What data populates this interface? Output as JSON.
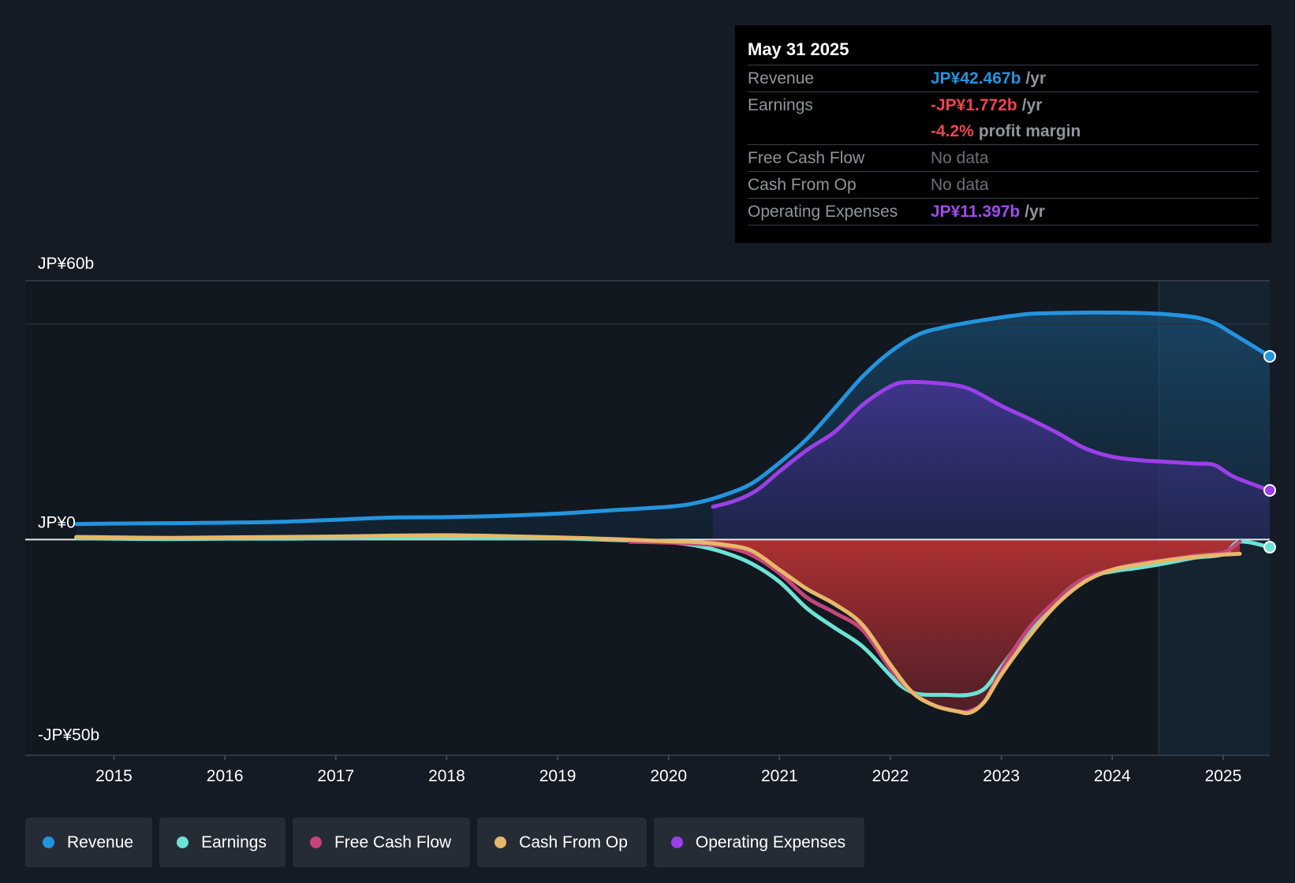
{
  "colors": {
    "background": "#151b24",
    "revenue": "#2394df",
    "earnings": "#6ce3d4",
    "free_cash_flow": "#c4457a",
    "cash_from_op": "#e6b86a",
    "operating_expenses": "#9b3fe8"
  },
  "tooltip": {
    "date": "May 31 2025",
    "rows": [
      {
        "label": "Revenue",
        "value": "JP¥42.467b",
        "unit": "/yr"
      },
      {
        "label": "Earnings",
        "value": "-JP¥1.772b",
        "unit": "/yr"
      },
      {
        "label": "",
        "value": "-4.2%",
        "unit": "profit margin"
      },
      {
        "label": "Free Cash Flow",
        "value": "No data",
        "unit": ""
      },
      {
        "label": "Cash From Op",
        "value": "No data",
        "unit": ""
      },
      {
        "label": "Operating Expenses",
        "value": "JP¥11.397b",
        "unit": "/yr"
      }
    ]
  },
  "legend": [
    {
      "label": "Revenue",
      "icon": "dot-icon"
    },
    {
      "label": "Earnings",
      "icon": "dot-icon"
    },
    {
      "label": "Free Cash Flow",
      "icon": "dot-icon"
    },
    {
      "label": "Cash From Op",
      "icon": "dot-icon"
    },
    {
      "label": "Operating Expenses",
      "icon": "dot-icon"
    }
  ],
  "chart_data": {
    "type": "area",
    "title": "",
    "xlabel": "",
    "ylabel": "",
    "ylim": [
      -50,
      60
    ],
    "xlim": [
      2014.2,
      2025.42
    ],
    "grid": true,
    "legend_position": "bottom",
    "y_ticks": [
      {
        "value": 60,
        "label": "JP¥60b"
      },
      {
        "value": 0,
        "label": "JP¥0"
      },
      {
        "value": -50,
        "label": "-JP¥50b"
      }
    ],
    "x_ticks": [
      "2015",
      "2016",
      "2017",
      "2018",
      "2019",
      "2020",
      "2021",
      "2022",
      "2023",
      "2024",
      "2025"
    ],
    "series": [
      {
        "name": "Revenue",
        "unit": "JP¥b",
        "x": [
          2014.66,
          2015.0,
          2015.5,
          2016.0,
          2016.5,
          2017.0,
          2017.5,
          2018.0,
          2018.5,
          2019.0,
          2019.5,
          2020.0,
          2020.25,
          2020.5,
          2020.75,
          2021.0,
          2021.25,
          2021.5,
          2021.75,
          2022.0,
          2022.25,
          2022.5,
          2022.75,
          2023.0,
          2023.25,
          2023.5,
          2023.75,
          2024.0,
          2024.25,
          2024.5,
          2024.75,
          2024.92,
          2025.1,
          2025.42
        ],
        "values": [
          3.6,
          3.7,
          3.8,
          3.9,
          4.1,
          4.6,
          5.1,
          5.2,
          5.5,
          6.0,
          6.8,
          7.6,
          8.5,
          10.3,
          13.0,
          17.8,
          23.4,
          30.5,
          37.8,
          43.5,
          47.5,
          49.3,
          50.5,
          51.5,
          52.3,
          52.5,
          52.6,
          52.6,
          52.5,
          52.2,
          51.5,
          50.2,
          47.5,
          42.467
        ]
      },
      {
        "name": "Earnings",
        "unit": "JP¥b",
        "x": [
          2014.66,
          2015.0,
          2015.5,
          2016.0,
          2016.5,
          2017.0,
          2017.5,
          2018.0,
          2018.5,
          2019.0,
          2019.5,
          2019.75,
          2020.0,
          2020.25,
          2020.5,
          2020.75,
          2021.0,
          2021.25,
          2021.5,
          2021.75,
          2022.0,
          2022.1,
          2022.25,
          2022.5,
          2022.7,
          2022.85,
          2023.0,
          2023.25,
          2023.5,
          2023.75,
          2024.0,
          2024.25,
          2024.5,
          2024.75,
          2025.0,
          2025.15,
          2025.42
        ],
        "values": [
          0.3,
          0.2,
          0.1,
          0.2,
          0.2,
          0.3,
          0.4,
          0.4,
          0.3,
          0.3,
          -0.1,
          -0.3,
          -0.6,
          -1.4,
          -3.0,
          -5.6,
          -9.8,
          -16.0,
          -20.5,
          -24.8,
          -31.5,
          -34.0,
          -35.8,
          -36.0,
          -36.0,
          -34.5,
          -29.5,
          -21.0,
          -14.0,
          -9.0,
          -7.4,
          -6.5,
          -5.4,
          -4.2,
          -3.4,
          -0.5,
          -1.772
        ]
      },
      {
        "name": "Free Cash Flow",
        "unit": "JP¥b",
        "x": [
          2019.65,
          2020.0,
          2020.25,
          2020.5,
          2020.75,
          2021.0,
          2021.25,
          2021.5,
          2021.75,
          2022.0,
          2022.2,
          2022.4,
          2022.6,
          2022.72,
          2022.85,
          2023.0,
          2023.25,
          2023.5,
          2023.75,
          2024.0,
          2024.25,
          2024.5,
          2024.75,
          2025.0,
          2025.15
        ],
        "values": [
          -0.5,
          -0.7,
          -1.0,
          -1.6,
          -3.6,
          -7.8,
          -13.5,
          -17.0,
          -21.0,
          -30.0,
          -35.5,
          -38.5,
          -39.8,
          -39.7,
          -37.5,
          -30.2,
          -20.5,
          -14.0,
          -9.0,
          -7.0,
          -5.5,
          -4.7,
          -3.7,
          -3.0,
          -0.5
        ]
      },
      {
        "name": "Cash From Op",
        "unit": "JP¥b",
        "x": [
          2014.66,
          2015.0,
          2015.5,
          2016.0,
          2016.5,
          2017.0,
          2017.5,
          2018.0,
          2018.5,
          2019.0,
          2019.5,
          2020.0,
          2020.25,
          2020.5,
          2020.75,
          2021.0,
          2021.25,
          2021.5,
          2021.75,
          2022.0,
          2022.2,
          2022.4,
          2022.6,
          2022.72,
          2022.85,
          2023.0,
          2023.25,
          2023.5,
          2023.75,
          2024.0,
          2024.25,
          2024.5,
          2024.75,
          2025.0,
          2025.15
        ],
        "values": [
          0.6,
          0.5,
          0.4,
          0.5,
          0.6,
          0.7,
          0.9,
          1.0,
          0.8,
          0.5,
          0.1,
          -0.4,
          -0.6,
          -1.2,
          -2.6,
          -7.0,
          -11.5,
          -15.0,
          -19.8,
          -29.0,
          -35.5,
          -38.5,
          -39.8,
          -40.1,
          -37.5,
          -31.3,
          -22.5,
          -15.0,
          -9.8,
          -7.0,
          -5.8,
          -4.8,
          -4.0,
          -3.5,
          -3.3
        ]
      },
      {
        "name": "Operating Expenses",
        "unit": "JP¥b",
        "x": [
          2020.4,
          2020.6,
          2020.8,
          2021.0,
          2021.25,
          2021.5,
          2021.75,
          2022.0,
          2022.15,
          2022.4,
          2022.6,
          2022.75,
          2023.0,
          2023.25,
          2023.5,
          2023.75,
          2024.0,
          2024.25,
          2024.5,
          2024.75,
          2024.92,
          2025.1,
          2025.42
        ],
        "values": [
          7.6,
          9.0,
          11.5,
          15.8,
          20.8,
          25.0,
          31.2,
          35.5,
          36.5,
          36.3,
          35.7,
          34.5,
          31.0,
          28.0,
          24.8,
          21.2,
          19.2,
          18.4,
          18.0,
          17.6,
          17.3,
          14.5,
          11.397
        ]
      }
    ]
  }
}
